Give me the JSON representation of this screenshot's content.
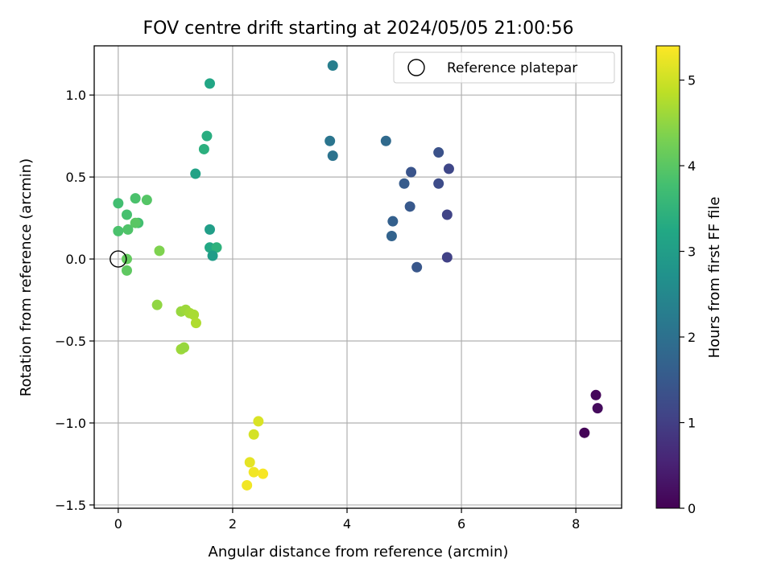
{
  "chart_data": {
    "type": "scatter",
    "title": "FOV centre drift starting at 2024/05/05 21:00:56",
    "xlabel": "Angular distance from reference (arcmin)",
    "ylabel": "Rotation from reference (arcmin)",
    "xlim": [
      -0.42,
      8.8
    ],
    "ylim": [
      -1.52,
      1.3
    ],
    "x_ticks": [
      0,
      2,
      4,
      6,
      8
    ],
    "x_tick_labels": [
      "0",
      "2",
      "4",
      "6",
      "8"
    ],
    "y_ticks": [
      -1.5,
      -1.0,
      -0.5,
      0.0,
      0.5,
      1.0
    ],
    "y_tick_labels": [
      "−1.5",
      "−1.0",
      "−0.5",
      "0.0",
      "0.5",
      "1.0"
    ],
    "grid": true,
    "legend": {
      "position": "top-right",
      "entries": [
        "Reference platepar"
      ]
    },
    "reference_point": {
      "x": 0.0,
      "y": 0.0
    },
    "colorbar": {
      "label": "Hours from first FF file",
      "colormap": "viridis",
      "range": [
        0,
        5.4
      ],
      "ticks": [
        0,
        1,
        2,
        3,
        4,
        5
      ],
      "tick_labels": [
        "0",
        "1",
        "2",
        "3",
        "4",
        "5"
      ]
    },
    "points": [
      {
        "x": 8.15,
        "y": -1.06,
        "c": 0.05
      },
      {
        "x": 8.35,
        "y": -0.83,
        "c": 0.1
      },
      {
        "x": 8.38,
        "y": -0.91,
        "c": 0.15
      },
      {
        "x": 5.75,
        "y": 0.01,
        "c": 1.05
      },
      {
        "x": 5.75,
        "y": 0.27,
        "c": 1.1
      },
      {
        "x": 5.78,
        "y": 0.55,
        "c": 1.15
      },
      {
        "x": 5.6,
        "y": 0.46,
        "c": 1.25
      },
      {
        "x": 5.6,
        "y": 0.65,
        "c": 1.35
      },
      {
        "x": 5.22,
        "y": -0.05,
        "c": 1.45
      },
      {
        "x": 5.12,
        "y": 0.53,
        "c": 1.4
      },
      {
        "x": 5.1,
        "y": 0.32,
        "c": 1.5
      },
      {
        "x": 5.0,
        "y": 0.46,
        "c": 1.55
      },
      {
        "x": 4.8,
        "y": 0.23,
        "c": 1.65
      },
      {
        "x": 4.78,
        "y": 0.14,
        "c": 1.7
      },
      {
        "x": 4.68,
        "y": 0.72,
        "c": 1.85
      },
      {
        "x": 3.75,
        "y": 0.63,
        "c": 2.05
      },
      {
        "x": 3.7,
        "y": 0.72,
        "c": 2.1
      },
      {
        "x": 3.75,
        "y": 1.18,
        "c": 2.3
      },
      {
        "x": 1.6,
        "y": 1.07,
        "c": 3.2
      },
      {
        "x": 1.55,
        "y": 0.75,
        "c": 3.35
      },
      {
        "x": 1.5,
        "y": 0.67,
        "c": 3.4
      },
      {
        "x": 1.35,
        "y": 0.52,
        "c": 3.1
      },
      {
        "x": 1.6,
        "y": 0.18,
        "c": 3.0
      },
      {
        "x": 1.6,
        "y": 0.07,
        "c": 3.25
      },
      {
        "x": 1.72,
        "y": 0.07,
        "c": 3.45
      },
      {
        "x": 1.65,
        "y": 0.02,
        "c": 2.95
      },
      {
        "x": 0.0,
        "y": 0.34,
        "c": 3.75
      },
      {
        "x": 0.0,
        "y": 0.17,
        "c": 3.85
      },
      {
        "x": 0.15,
        "y": 0.27,
        "c": 3.8
      },
      {
        "x": 0.17,
        "y": 0.18,
        "c": 3.9
      },
      {
        "x": 0.3,
        "y": 0.37,
        "c": 3.85
      },
      {
        "x": 0.35,
        "y": 0.22,
        "c": 3.75
      },
      {
        "x": 0.3,
        "y": 0.22,
        "c": 4.0
      },
      {
        "x": 0.5,
        "y": 0.36,
        "c": 3.95
      },
      {
        "x": 0.15,
        "y": 0.0,
        "c": 4.1
      },
      {
        "x": 0.15,
        "y": -0.07,
        "c": 4.05
      },
      {
        "x": 0.72,
        "y": 0.05,
        "c": 4.35
      },
      {
        "x": 0.68,
        "y": -0.28,
        "c": 4.5
      },
      {
        "x": 1.1,
        "y": -0.32,
        "c": 4.55
      },
      {
        "x": 1.18,
        "y": -0.31,
        "c": 4.6
      },
      {
        "x": 1.25,
        "y": -0.33,
        "c": 4.65
      },
      {
        "x": 1.32,
        "y": -0.34,
        "c": 4.7
      },
      {
        "x": 1.36,
        "y": -0.39,
        "c": 4.75
      },
      {
        "x": 1.1,
        "y": -0.55,
        "c": 4.6
      },
      {
        "x": 1.15,
        "y": -0.54,
        "c": 4.55
      },
      {
        "x": 2.45,
        "y": -0.99,
        "c": 5.1
      },
      {
        "x": 2.37,
        "y": -1.07,
        "c": 5.05
      },
      {
        "x": 2.3,
        "y": -1.24,
        "c": 5.2
      },
      {
        "x": 2.37,
        "y": -1.3,
        "c": 5.3
      },
      {
        "x": 2.53,
        "y": -1.31,
        "c": 5.35
      },
      {
        "x": 2.25,
        "y": -1.38,
        "c": 5.3
      }
    ]
  }
}
